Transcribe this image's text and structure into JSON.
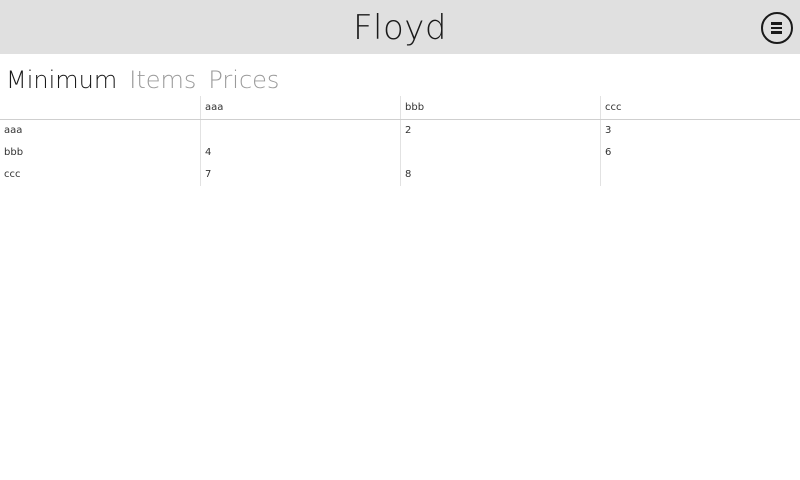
{
  "app": {
    "title": "Floyd"
  },
  "tabs": [
    {
      "label": "Minimum",
      "active": true
    },
    {
      "label": "Items",
      "active": false
    },
    {
      "label": "Prices",
      "active": false
    }
  ],
  "grid": {
    "columns": [
      "",
      "aaa",
      "bbb",
      "ccc"
    ],
    "rows": [
      [
        "aaa",
        "",
        "2",
        "3"
      ],
      [
        "bbb",
        "4",
        "",
        "6"
      ],
      [
        "ccc",
        "7",
        "8",
        ""
      ]
    ]
  },
  "icons": {
    "menu": "hamburger-circle-icon"
  },
  "colors": {
    "title_bar": "#e0e0e0",
    "active_tab": "#1a1a1a",
    "inactive_tab": "#9a9a9a"
  }
}
